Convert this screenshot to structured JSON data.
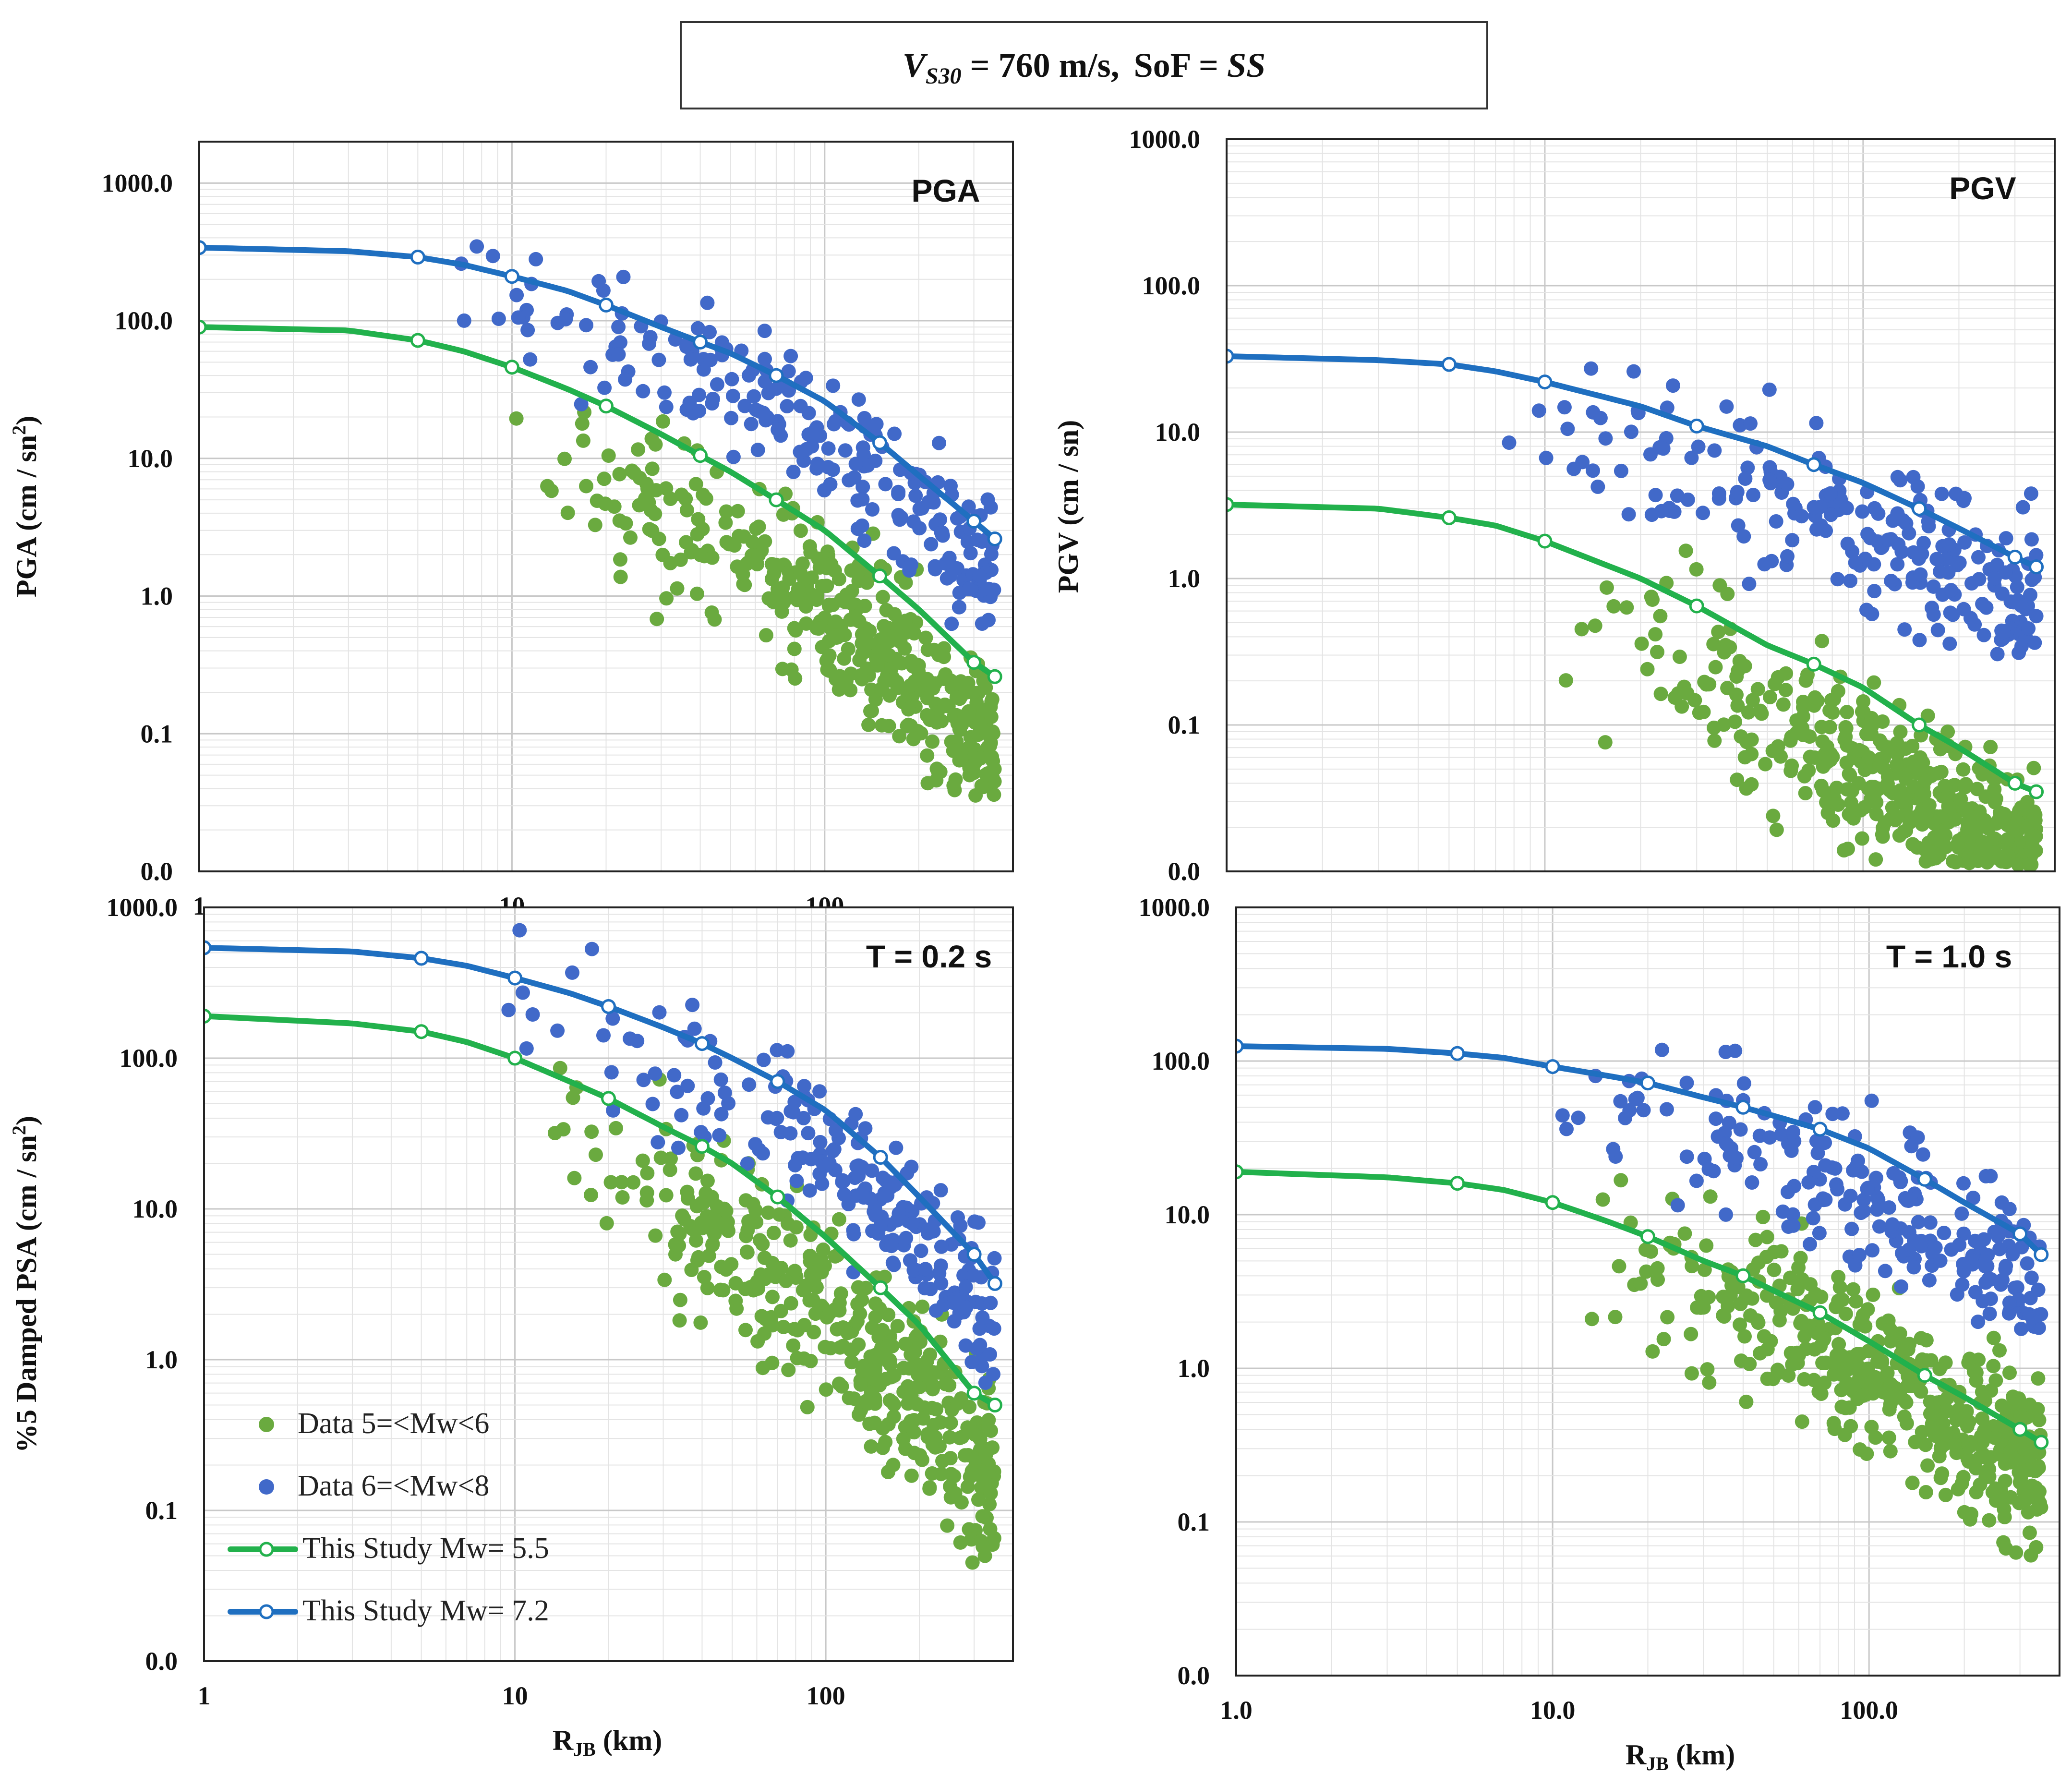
{
  "title": {
    "vs30_symbol": "V",
    "vs30_subscript": "S30",
    "vs30_value": " = 760 m/s,",
    "sof_label": "SoF = ",
    "sof_value": "SS"
  },
  "colors": {
    "green": "#22b14c",
    "green_dot": "#6aaa3f",
    "blue": "#1f6fc0",
    "blue_dot": "#4169c9",
    "grid_major": "#c8c8c8",
    "grid_minor": "#e4e4e4"
  },
  "x_axis": {
    "label_main": "R",
    "label_sub": "JB",
    "label_unit": " (km)"
  },
  "legend": {
    "items": [
      {
        "label": "Data 5=<Mw<6",
        "kind": "dot",
        "color": "#6aaa3f"
      },
      {
        "label": "Data 6=<Mw<8",
        "kind": "dot",
        "color": "#4169c9"
      },
      {
        "label": "This Study Mw= 5.5",
        "kind": "line",
        "color": "#22b14c"
      },
      {
        "label": "This Study Mw= 7.2",
        "kind": "line",
        "color": "#1f6fc0"
      }
    ]
  },
  "chart_data": [
    {
      "id": "pga",
      "type": "scatter",
      "title": "PGA",
      "ylabel": "PGA (cm / sn²)",
      "ylabel_main": "PGA (cm / sn",
      "ylabel_sup": "2",
      "ylabel_end": ")",
      "xlim": [
        1,
        400
      ],
      "ylim": [
        0.01,
        2000
      ],
      "ytick_values": [
        0.01,
        0.1,
        1,
        10,
        100,
        1000
      ],
      "ytick_labels": [
        "0.0",
        "0.1",
        "1.0",
        "10.0",
        "100.0",
        "1000.0"
      ],
      "xtick_values": [
        1,
        10,
        100
      ],
      "xtick_labels": [
        "1",
        "10",
        "100"
      ],
      "series": [
        {
          "name": "This Study Mw= 5.5",
          "kind": "line",
          "color": "#22b14c",
          "x": [
            1,
            3,
            5,
            7,
            10,
            15,
            20,
            30,
            40,
            50,
            70,
            100,
            150,
            200,
            300,
            350
          ],
          "y": [
            90,
            85,
            72,
            60,
            46,
            32,
            24,
            15,
            10.5,
            8,
            5,
            3,
            1.4,
            0.8,
            0.33,
            0.26
          ]
        },
        {
          "name": "This Study Mw= 7.2",
          "kind": "line",
          "color": "#1f6fc0",
          "x": [
            1,
            3,
            5,
            7,
            10,
            15,
            20,
            30,
            40,
            50,
            70,
            100,
            150,
            200,
            300,
            350
          ],
          "y": [
            340,
            320,
            290,
            255,
            210,
            165,
            130,
            90,
            70,
            58,
            40,
            26,
            13,
            7.5,
            3.5,
            2.6
          ]
        },
        {
          "name": "Data 5=<Mw<6",
          "kind": "dot",
          "color": "#6aaa3f",
          "seed": 11,
          "n": 420,
          "xrange": [
            10,
            350
          ],
          "ref": "This Study Mw= 5.5",
          "spread": 1.8,
          "bias": -0.55,
          "ymin": 0.035
        },
        {
          "name": "Data 6=<Mw<8",
          "kind": "dot",
          "color": "#4169c9",
          "seed": 12,
          "n": 230,
          "xrange": [
            6,
            350
          ],
          "ref": "This Study Mw= 7.2",
          "spread": 1.5,
          "bias": -0.25,
          "ymin": 0.5
        }
      ]
    },
    {
      "id": "pgv",
      "type": "scatter",
      "title": "PGV",
      "ylabel": "PGV (cm / sn)",
      "ylabel_main": "PGV (cm / sn)",
      "ylabel_sup": "",
      "ylabel_end": "",
      "xlim": [
        1,
        400
      ],
      "ylim": [
        0.01,
        1000
      ],
      "ytick_values": [
        0.01,
        0.1,
        1,
        10,
        100,
        1000
      ],
      "ytick_labels": [
        "0.0",
        "0.1",
        "1.0",
        "10.0",
        "100.0",
        "1000.0"
      ],
      "xtick_values": [],
      "xtick_labels": [],
      "series": [
        {
          "name": "This Study Mw= 5.5",
          "kind": "line",
          "color": "#22b14c",
          "x": [
            1,
            3,
            5,
            7,
            10,
            20,
            30,
            50,
            70,
            100,
            150,
            200,
            300,
            350
          ],
          "y": [
            3.2,
            3.0,
            2.6,
            2.3,
            1.8,
            1.0,
            0.65,
            0.35,
            0.26,
            0.18,
            0.1,
            0.07,
            0.04,
            0.035
          ]
        },
        {
          "name": "This Study Mw= 7.2",
          "kind": "line",
          "color": "#1f6fc0",
          "x": [
            1,
            3,
            5,
            7,
            10,
            20,
            30,
            50,
            70,
            100,
            150,
            200,
            300,
            350
          ],
          "y": [
            33,
            31,
            29,
            26,
            22,
            15,
            11,
            8,
            6,
            4.5,
            3,
            2.2,
            1.4,
            1.2
          ]
        },
        {
          "name": "Data 5=<Mw<6",
          "kind": "dot",
          "color": "#6aaa3f",
          "seed": 21,
          "n": 430,
          "xrange": [
            10,
            350
          ],
          "ref": "This Study Mw= 5.5",
          "spread": 1.8,
          "bias": -0.5,
          "ymin": 0.011
        },
        {
          "name": "Data 6=<Mw<8",
          "kind": "dot",
          "color": "#4169c9",
          "seed": 22,
          "n": 220,
          "xrange": [
            7,
            350
          ],
          "ref": "This Study Mw= 7.2",
          "spread": 1.7,
          "bias": -0.3,
          "ymin": 0.3
        }
      ]
    },
    {
      "id": "psa02",
      "type": "scatter",
      "title": "T = 0.2 s",
      "ylabel": "%5 Damped PSA (cm / sn²)",
      "ylabel_main": "%5 Damped PSA (cm / sn",
      "ylabel_sup": "2",
      "ylabel_end": ")",
      "xlim": [
        1,
        400
      ],
      "ylim": [
        0.01,
        1000
      ],
      "ytick_values": [
        0.01,
        0.1,
        1,
        10,
        100,
        1000
      ],
      "ytick_labels": [
        "0.0",
        "0.1",
        "1.0",
        "10.0",
        "100.0",
        "1000.0"
      ],
      "xtick_values": [
        1,
        10,
        100
      ],
      "xtick_labels": [
        "1",
        "10",
        "100"
      ],
      "series": [
        {
          "name": "This Study Mw= 5.5",
          "kind": "line",
          "color": "#22b14c",
          "x": [
            1,
            3,
            5,
            7,
            10,
            15,
            20,
            30,
            40,
            50,
            70,
            100,
            150,
            200,
            300,
            350
          ],
          "y": [
            190,
            170,
            150,
            128,
            100,
            70,
            54,
            35,
            26,
            20,
            12,
            6.5,
            3,
            1.7,
            0.6,
            0.5
          ]
        },
        {
          "name": "This Study Mw= 7.2",
          "kind": "line",
          "color": "#1f6fc0",
          "x": [
            1,
            3,
            5,
            7,
            10,
            15,
            20,
            30,
            40,
            50,
            70,
            100,
            150,
            200,
            300,
            350
          ],
          "y": [
            540,
            510,
            460,
            410,
            340,
            270,
            220,
            160,
            125,
            100,
            70,
            45,
            22,
            12,
            5,
            3.2
          ]
        },
        {
          "name": "Data 5=<Mw<6",
          "kind": "dot",
          "color": "#6aaa3f",
          "seed": 31,
          "n": 420,
          "xrange": [
            10,
            350
          ],
          "ref": "This Study Mw= 5.5",
          "spread": 1.8,
          "bias": -0.5,
          "ymin": 0.045
        },
        {
          "name": "Data 6=<Mw<8",
          "kind": "dot",
          "color": "#4169c9",
          "seed": 32,
          "n": 220,
          "xrange": [
            7,
            350
          ],
          "ref": "This Study Mw= 7.2",
          "spread": 1.5,
          "bias": -0.25,
          "ymin": 0.7
        }
      ]
    },
    {
      "id": "psa10",
      "type": "scatter",
      "title": "T = 1.0 s",
      "ylabel": "",
      "ylabel_main": "",
      "ylabel_sup": "",
      "ylabel_end": "",
      "xlim": [
        1,
        400
      ],
      "ylim": [
        0.01,
        1000
      ],
      "ytick_values": [
        0.01,
        0.1,
        1,
        10,
        100,
        1000
      ],
      "ytick_labels": [
        "0.0",
        "0.1",
        "1.0",
        "10.0",
        "100.0",
        "1000.0"
      ],
      "xtick_values": [
        1,
        10,
        100
      ],
      "xtick_labels": [
        "1.0",
        "10.0",
        "100.0"
      ],
      "series": [
        {
          "name": "This Study Mw= 5.5",
          "kind": "line",
          "color": "#22b14c",
          "x": [
            1,
            3,
            5,
            7,
            10,
            15,
            20,
            30,
            40,
            50,
            70,
            100,
            150,
            200,
            300,
            350
          ],
          "y": [
            19,
            17.5,
            16,
            14.5,
            12,
            9,
            7.2,
            5,
            4,
            3.2,
            2.3,
            1.5,
            0.9,
            0.65,
            0.4,
            0.33
          ]
        },
        {
          "name": "This Study Mw= 7.2",
          "kind": "line",
          "color": "#1f6fc0",
          "x": [
            1,
            3,
            5,
            7,
            10,
            15,
            20,
            30,
            40,
            50,
            70,
            100,
            150,
            200,
            300,
            350
          ],
          "y": [
            125,
            120,
            112,
            105,
            92,
            80,
            72,
            58,
            50,
            44,
            36,
            27,
            17,
            12,
            7.5,
            5.5
          ]
        },
        {
          "name": "Data 5=<Mw<6",
          "kind": "dot",
          "color": "#6aaa3f",
          "seed": 41,
          "n": 430,
          "xrange": [
            10,
            350
          ],
          "ref": "This Study Mw= 5.5",
          "spread": 1.6,
          "bias": -0.2,
          "ymin": 0.045
        },
        {
          "name": "Data 6=<Mw<8",
          "kind": "dot",
          "color": "#4169c9",
          "seed": 42,
          "n": 220,
          "xrange": [
            7,
            350
          ],
          "ref": "This Study Mw= 7.2",
          "spread": 1.5,
          "bias": -0.3,
          "ymin": 1.5
        }
      ]
    }
  ]
}
